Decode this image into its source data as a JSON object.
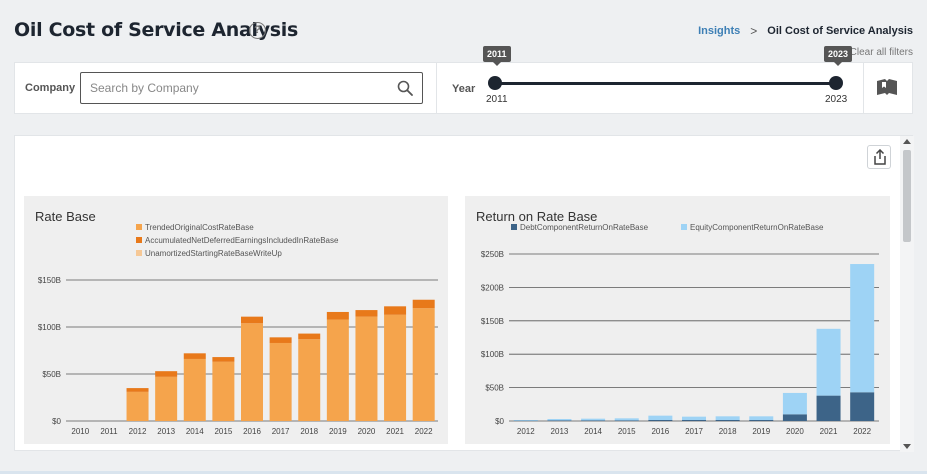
{
  "header": {
    "title": "Oil Cost of Service Analysis",
    "help_icon": "question-circle-icon",
    "breadcrumb": {
      "parent": "Insights",
      "separator": ">",
      "current": "Oil Cost of Service Analysis"
    },
    "clear_filters": "Clear all filters"
  },
  "filters": {
    "company_label": "Company",
    "search_placeholder": "Search by Company",
    "year_label": "Year",
    "year_start": "2011",
    "year_end": "2023",
    "slider_min": 2011,
    "slider_max": 2023
  },
  "colors": {
    "navy": "#1d2530",
    "orange_light": "#f5a44c",
    "orange_dark": "#e8791a",
    "orange_pale": "#f6c896",
    "blue_light": "#9ed3f5",
    "blue_dark": "#3d6488"
  },
  "chart_data": [
    {
      "type": "bar",
      "stacked": true,
      "title": "Rate Base",
      "legend_position": "top",
      "categories": [
        "2010",
        "2011",
        "2012",
        "2013",
        "2014",
        "2015",
        "2016",
        "2017",
        "2018",
        "2019",
        "2020",
        "2021",
        "2022"
      ],
      "series": [
        {
          "name": "TrendedOriginalCostRateBase",
          "color": "#f5a44c",
          "values": [
            0,
            0,
            31,
            47,
            66,
            63,
            104,
            83,
            87,
            108,
            111,
            113,
            120
          ]
        },
        {
          "name": "AccumulatedNetDeferredEarningsIncludedInRateBase",
          "color": "#e8791a",
          "values": [
            0,
            0,
            4,
            6,
            6,
            5,
            7,
            6,
            6,
            8,
            7,
            9,
            9
          ]
        },
        {
          "name": "UnamortizedStartingRateBaseWriteUp",
          "color": "#f6c896",
          "values": [
            0,
            0,
            0,
            0,
            0,
            0,
            0,
            0,
            0,
            0,
            0,
            0,
            0
          ]
        }
      ],
      "ylim": [
        0,
        150
      ],
      "yticks": [
        0,
        50,
        100,
        150
      ],
      "ytick_labels": [
        "$0",
        "$50B",
        "$100B",
        "$150B"
      ],
      "xlabel": "",
      "ylabel": ""
    },
    {
      "type": "bar",
      "stacked": true,
      "title": "Return on Rate Base",
      "legend_position": "top",
      "categories": [
        "2012",
        "2013",
        "2014",
        "2015",
        "2016",
        "2017",
        "2018",
        "2019",
        "2020",
        "2021",
        "2022"
      ],
      "series": [
        {
          "name": "DebtComponentReturnOnRateBase",
          "color": "#3d6488",
          "values": [
            0.5,
            1,
            1,
            1,
            1.5,
            1.5,
            1.5,
            1.5,
            10,
            38,
            43
          ]
        },
        {
          "name": "EquityComponentReturnOnRateBase",
          "color": "#9ed3f5",
          "values": [
            1,
            2,
            2.5,
            3,
            6.5,
            5,
            5.5,
            5.5,
            32,
            100,
            192
          ]
        }
      ],
      "ylim": [
        0,
        250
      ],
      "yticks": [
        0,
        50,
        100,
        150,
        200,
        250
      ],
      "ytick_labels": [
        "$0",
        "$50B",
        "$100B",
        "$150B",
        "$200B",
        "$250B"
      ],
      "xlabel": "",
      "ylabel": ""
    }
  ]
}
